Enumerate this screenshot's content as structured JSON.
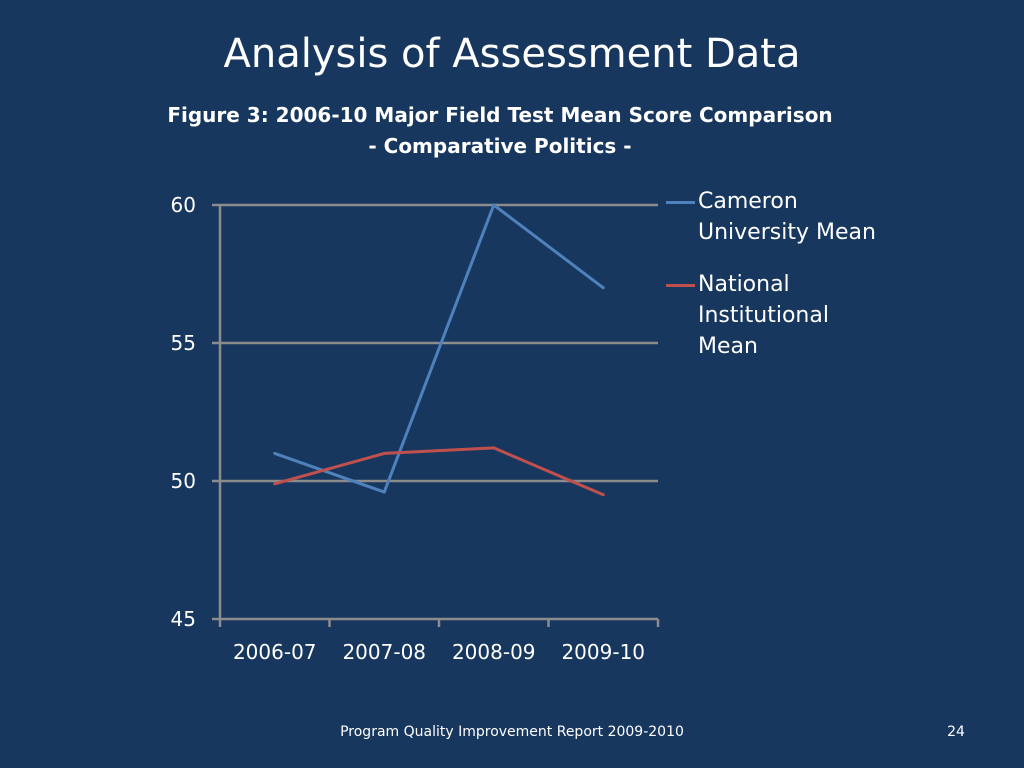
{
  "slide": {
    "title": "Analysis of Assessment Data",
    "footer": "Program Quality Improvement Report 2009-2010",
    "page_number": "24"
  },
  "chart_data": {
    "type": "line",
    "title": "Figure 3: 2006-10 Major Field Test Mean Score Comparison",
    "subtitle": "- Comparative Politics -",
    "categories": [
      "2006-07",
      "2007-08",
      "2008-09",
      "2009-10"
    ],
    "series": [
      {
        "name": "Cameron University Mean",
        "values": [
          51.0,
          49.6,
          60.0,
          57.0
        ],
        "color": "#4f81bd"
      },
      {
        "name": "National Institutional Mean",
        "values": [
          49.9,
          51.0,
          51.2,
          49.5
        ],
        "color": "#c0504d"
      }
    ],
    "ylim": [
      45,
      60
    ],
    "yticks": [
      45,
      50,
      55,
      60
    ],
    "xlabel": "",
    "ylabel": "",
    "grid": true,
    "legend": "right",
    "colors": {
      "background": "#17375e",
      "gridline": "#8c8c8c",
      "text": "#ffffff"
    }
  }
}
